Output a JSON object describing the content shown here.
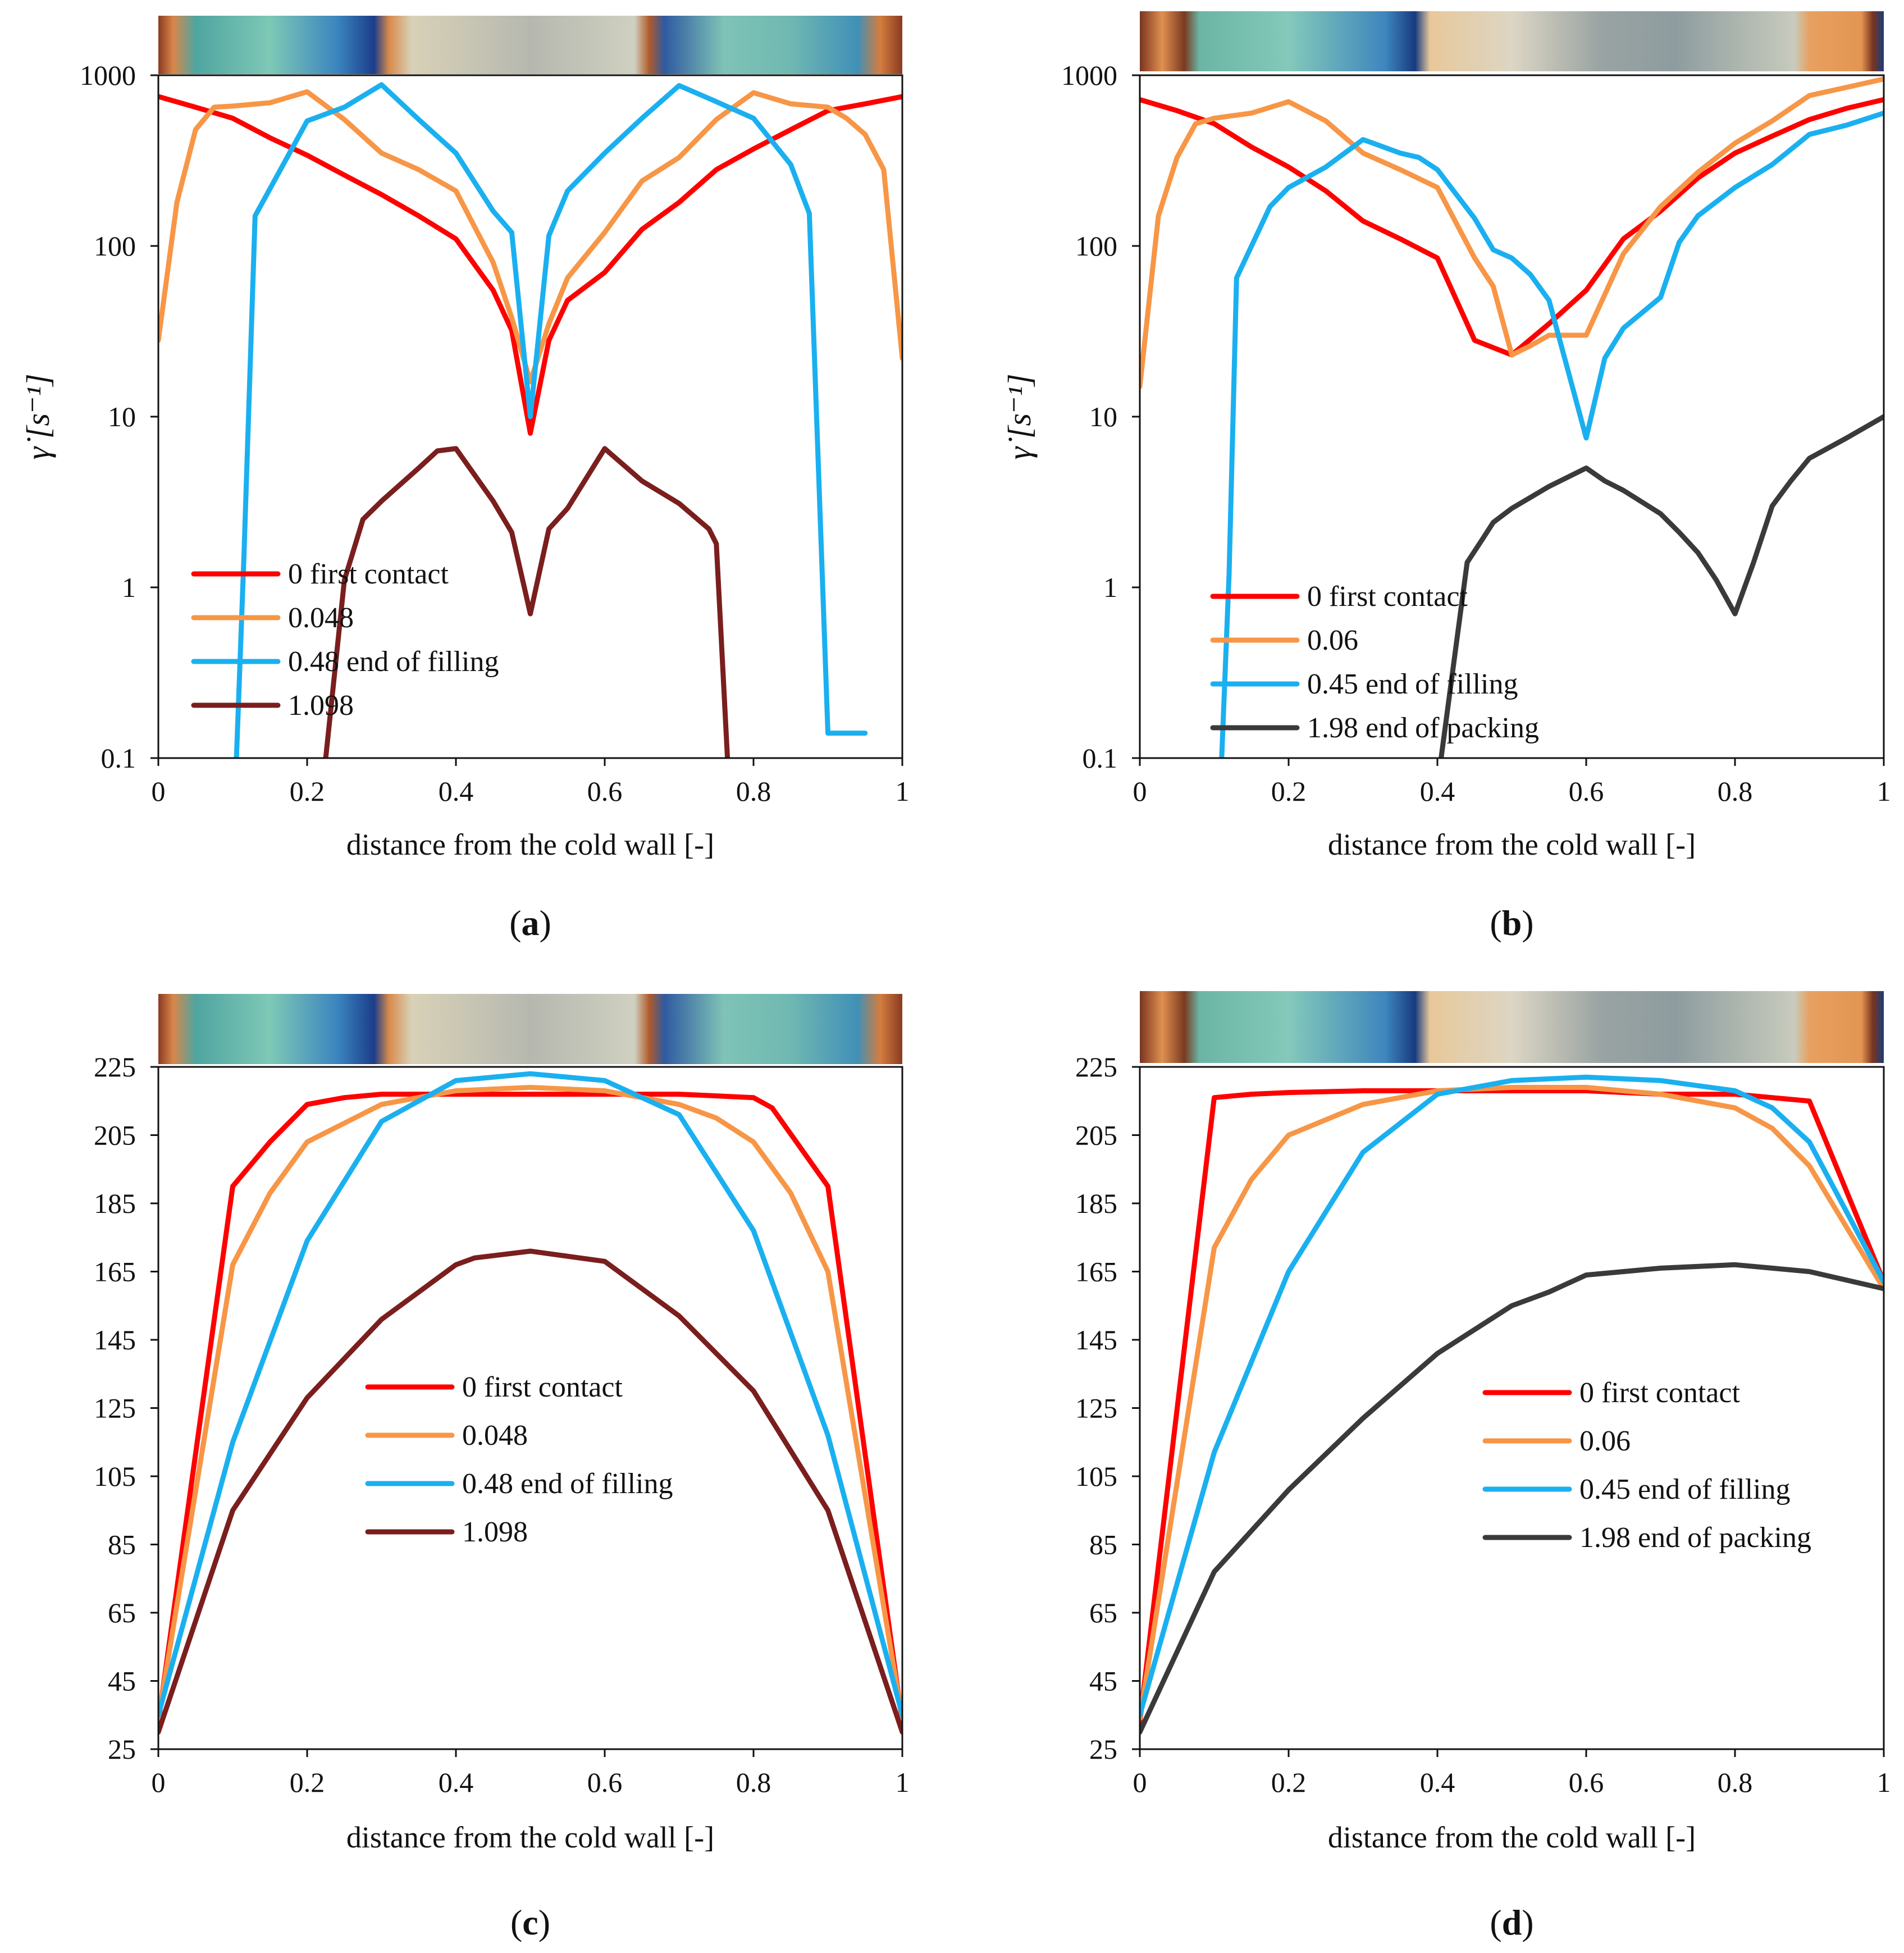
{
  "colors": {
    "red": "#ff0000",
    "orange": "#f79646",
    "blue": "#1ab0f0",
    "maroon": "#7a1e1e",
    "dark": "#3a3a3a",
    "axis": "#111111"
  },
  "chart_data": [
    {
      "panel_label": "(a)",
      "type": "line",
      "yscale": "log",
      "xlabel": "distance from the cold wall [-]",
      "ylabel": "γ̇ [s⁻¹]",
      "xlim": [
        0,
        1
      ],
      "ylim": [
        0.1,
        1000
      ],
      "xticks": [
        "0",
        "0.2",
        "0.4",
        "0.6",
        "0.8",
        "1"
      ],
      "yticks": [
        "0.1",
        "1",
        "10",
        "100",
        "1000"
      ],
      "legend_position": "bottom-left",
      "series": [
        {
          "name": "0 first contact",
          "color": "red",
          "x": [
            0,
            0.05,
            0.1,
            0.15,
            0.2,
            0.25,
            0.3,
            0.35,
            0.4,
            0.45,
            0.475,
            0.5,
            0.525,
            0.55,
            0.6,
            0.65,
            0.7,
            0.75,
            0.8,
            0.85,
            0.9,
            0.95,
            1
          ],
          "y": [
            750,
            650,
            560,
            430,
            340,
            260,
            200,
            150,
            110,
            55,
            32,
            8,
            28,
            48,
            70,
            125,
            180,
            280,
            370,
            480,
            620,
            680,
            750
          ]
        },
        {
          "name": "0.048",
          "color": "orange",
          "x": [
            0,
            0.025,
            0.05,
            0.075,
            0.1,
            0.15,
            0.2,
            0.25,
            0.3,
            0.35,
            0.4,
            0.45,
            0.475,
            0.5,
            0.525,
            0.55,
            0.6,
            0.65,
            0.7,
            0.75,
            0.8,
            0.85,
            0.9,
            0.925,
            0.95,
            0.975,
            1
          ],
          "y": [
            28,
            180,
            480,
            650,
            660,
            690,
            800,
            550,
            350,
            280,
            210,
            80,
            38,
            16,
            35,
            65,
            120,
            240,
            330,
            550,
            790,
            680,
            650,
            560,
            450,
            280,
            22
          ]
        },
        {
          "name": "0.48 end of filling",
          "color": "blue",
          "x": [
            0.105,
            0.115,
            0.13,
            0.2,
            0.25,
            0.3,
            0.35,
            0.4,
            0.45,
            0.475,
            0.5,
            0.525,
            0.55,
            0.6,
            0.65,
            0.7,
            0.75,
            0.8,
            0.85,
            0.875,
            0.9,
            0.95
          ],
          "y": [
            0.1,
            1.5,
            150,
            540,
            650,
            880,
            550,
            350,
            160,
            120,
            10,
            115,
            210,
            350,
            560,
            870,
            700,
            560,
            300,
            155,
            0.14,
            0.14
          ]
        },
        {
          "name": "1.098",
          "color": "maroon",
          "x": [
            0.225,
            0.25,
            0.275,
            0.3,
            0.35,
            0.375,
            0.4,
            0.45,
            0.475,
            0.5,
            0.525,
            0.55,
            0.6,
            0.65,
            0.7,
            0.74,
            0.75,
            0.765
          ],
          "y": [
            0.1,
            1.1,
            2.5,
            3.2,
            5.0,
            6.3,
            6.5,
            3.2,
            2.1,
            0.7,
            2.2,
            2.9,
            6.5,
            4.2,
            3.1,
            2.2,
            1.8,
            0.1
          ]
        }
      ]
    },
    {
      "panel_label": "(b)",
      "type": "line",
      "yscale": "log",
      "xlabel": "distance from the cold wall [-]",
      "ylabel": "γ̇ [s⁻¹]",
      "xlim": [
        0,
        1
      ],
      "ylim": [
        0.1,
        1000
      ],
      "xticks": [
        "0",
        "0.2",
        "0.4",
        "0.6",
        "0.8",
        "1"
      ],
      "yticks": [
        "0.1",
        "1",
        "10",
        "100",
        "1000"
      ],
      "legend_position": "bottom-left",
      "series": [
        {
          "name": "0 first contact",
          "color": "red",
          "x": [
            0,
            0.05,
            0.1,
            0.15,
            0.2,
            0.25,
            0.3,
            0.35,
            0.4,
            0.45,
            0.5,
            0.55,
            0.6,
            0.65,
            0.7,
            0.75,
            0.8,
            0.85,
            0.9,
            0.95,
            1
          ],
          "y": [
            720,
            620,
            520,
            380,
            290,
            210,
            140,
            110,
            85,
            28,
            23,
            35,
            55,
            110,
            160,
            250,
            350,
            440,
            550,
            640,
            720
          ]
        },
        {
          "name": "0.06",
          "color": "orange",
          "x": [
            0,
            0.025,
            0.05,
            0.075,
            0.1,
            0.15,
            0.2,
            0.25,
            0.3,
            0.35,
            0.4,
            0.45,
            0.475,
            0.5,
            0.525,
            0.55,
            0.6,
            0.65,
            0.7,
            0.75,
            0.8,
            0.85,
            0.9,
            0.95,
            1
          ],
          "y": [
            15,
            150,
            330,
            520,
            560,
            600,
            700,
            540,
            350,
            280,
            220,
            85,
            58,
            23,
            26,
            30,
            30,
            90,
            170,
            270,
            400,
            540,
            760,
            850,
            950
          ]
        },
        {
          "name": "0.45 end of filling",
          "color": "blue",
          "x": [
            0.11,
            0.12,
            0.13,
            0.175,
            0.2,
            0.25,
            0.3,
            0.35,
            0.375,
            0.4,
            0.45,
            0.475,
            0.5,
            0.525,
            0.55,
            0.6,
            0.625,
            0.65,
            0.7,
            0.725,
            0.75,
            0.8,
            0.85,
            0.9,
            0.95,
            1
          ],
          "y": [
            0.1,
            1.2,
            65,
            170,
            220,
            290,
            420,
            350,
            330,
            280,
            145,
            95,
            85,
            68,
            48,
            7.5,
            22,
            33,
            50,
            105,
            150,
            220,
            300,
            450,
            510,
            600
          ]
        },
        {
          "name": "1.98 end of packing",
          "color": "dark",
          "x": [
            0.405,
            0.44,
            0.46,
            0.475,
            0.5,
            0.55,
            0.6,
            0.625,
            0.65,
            0.7,
            0.725,
            0.75,
            0.775,
            0.8,
            0.825,
            0.85,
            0.875,
            0.9,
            0.95,
            1
          ],
          "y": [
            0.1,
            1.4,
            1.9,
            2.4,
            2.9,
            3.9,
            5.0,
            4.2,
            3.7,
            2.7,
            2.1,
            1.6,
            1.1,
            0.7,
            1.4,
            3.0,
            4.2,
            5.7,
            7.5,
            10
          ]
        }
      ]
    },
    {
      "panel_label": "(c)",
      "type": "line",
      "yscale": "linear",
      "xlabel": "distance from the cold wall [-]",
      "ylabel": "",
      "xlim": [
        0,
        1
      ],
      "ylim": [
        25,
        225
      ],
      "xticks": [
        "0",
        "0.2",
        "0.4",
        "0.6",
        "0.8",
        "1"
      ],
      "yticks": [
        "25",
        "45",
        "65",
        "85",
        "105",
        "125",
        "145",
        "165",
        "185",
        "205",
        "225"
      ],
      "legend_position": "bottom-center",
      "series": [
        {
          "name": "0 first contact",
          "color": "red",
          "x": [
            0,
            0.1,
            0.15,
            0.2,
            0.25,
            0.3,
            0.4,
            0.5,
            0.6,
            0.7,
            0.75,
            0.8,
            0.825,
            0.9,
            1
          ],
          "y": [
            33,
            190,
            203,
            214,
            216,
            217,
            217,
            217,
            217,
            217,
            216.5,
            216,
            213,
            190,
            33
          ]
        },
        {
          "name": "0.048",
          "color": "orange",
          "x": [
            0,
            0.1,
            0.15,
            0.2,
            0.3,
            0.4,
            0.5,
            0.6,
            0.7,
            0.75,
            0.8,
            0.85,
            0.9,
            1
          ],
          "y": [
            34,
            167,
            188,
            203,
            214,
            218,
            219,
            218,
            214,
            210,
            203,
            188,
            165,
            34
          ]
        },
        {
          "name": "0.48 end of filling",
          "color": "blue",
          "x": [
            0,
            0.1,
            0.2,
            0.3,
            0.4,
            0.5,
            0.6,
            0.7,
            0.8,
            0.9,
            1
          ],
          "y": [
            35,
            115,
            174,
            209,
            221,
            223,
            221,
            211,
            177,
            117,
            35
          ]
        },
        {
          "name": "1.098",
          "color": "maroon",
          "x": [
            0,
            0.1,
            0.2,
            0.3,
            0.4,
            0.425,
            0.5,
            0.6,
            0.7,
            0.8,
            0.9,
            1
          ],
          "y": [
            30,
            95,
            128,
            151,
            167,
            169,
            171,
            168,
            152,
            130,
            95,
            30
          ]
        }
      ]
    },
    {
      "panel_label": "(d)",
      "type": "line",
      "yscale": "linear",
      "xlabel": "distance from the cold wall [-]",
      "ylabel": "",
      "xlim": [
        0,
        1
      ],
      "ylim": [
        25,
        225
      ],
      "xticks": [
        "0",
        "0.2",
        "0.4",
        "0.6",
        "0.8",
        "1"
      ],
      "yticks": [
        "25",
        "45",
        "65",
        "85",
        "105",
        "125",
        "145",
        "165",
        "185",
        "205",
        "225"
      ],
      "legend_position": "bottom-right",
      "series": [
        {
          "name": "0 first contact",
          "color": "red",
          "x": [
            0,
            0.1,
            0.15,
            0.2,
            0.3,
            0.4,
            0.5,
            0.6,
            0.7,
            0.8,
            0.85,
            0.9,
            1
          ],
          "y": [
            33,
            216,
            217,
            217.5,
            218,
            218,
            218,
            218,
            217,
            217,
            216,
            215,
            162
          ]
        },
        {
          "name": "0.06",
          "color": "orange",
          "x": [
            0,
            0.1,
            0.15,
            0.2,
            0.3,
            0.4,
            0.5,
            0.6,
            0.7,
            0.8,
            0.85,
            0.9,
            1
          ],
          "y": [
            34,
            172,
            192,
            205,
            214,
            218,
            219,
            219,
            217,
            213,
            207,
            196,
            160
          ]
        },
        {
          "name": "0.45 end of filling",
          "color": "blue",
          "x": [
            0,
            0.1,
            0.2,
            0.3,
            0.4,
            0.5,
            0.6,
            0.7,
            0.8,
            0.85,
            0.9,
            1
          ],
          "y": [
            35,
            112,
            165,
            200,
            217,
            221,
            222,
            221,
            218,
            213,
            203,
            162
          ]
        },
        {
          "name": "1.98 end of packing",
          "color": "dark",
          "x": [
            0,
            0.1,
            0.2,
            0.3,
            0.4,
            0.5,
            0.55,
            0.6,
            0.7,
            0.8,
            0.85,
            0.9,
            1
          ],
          "y": [
            30,
            77,
            101,
            122,
            141,
            155,
            159,
            164,
            166,
            167,
            166,
            165,
            160
          ]
        }
      ]
    }
  ]
}
